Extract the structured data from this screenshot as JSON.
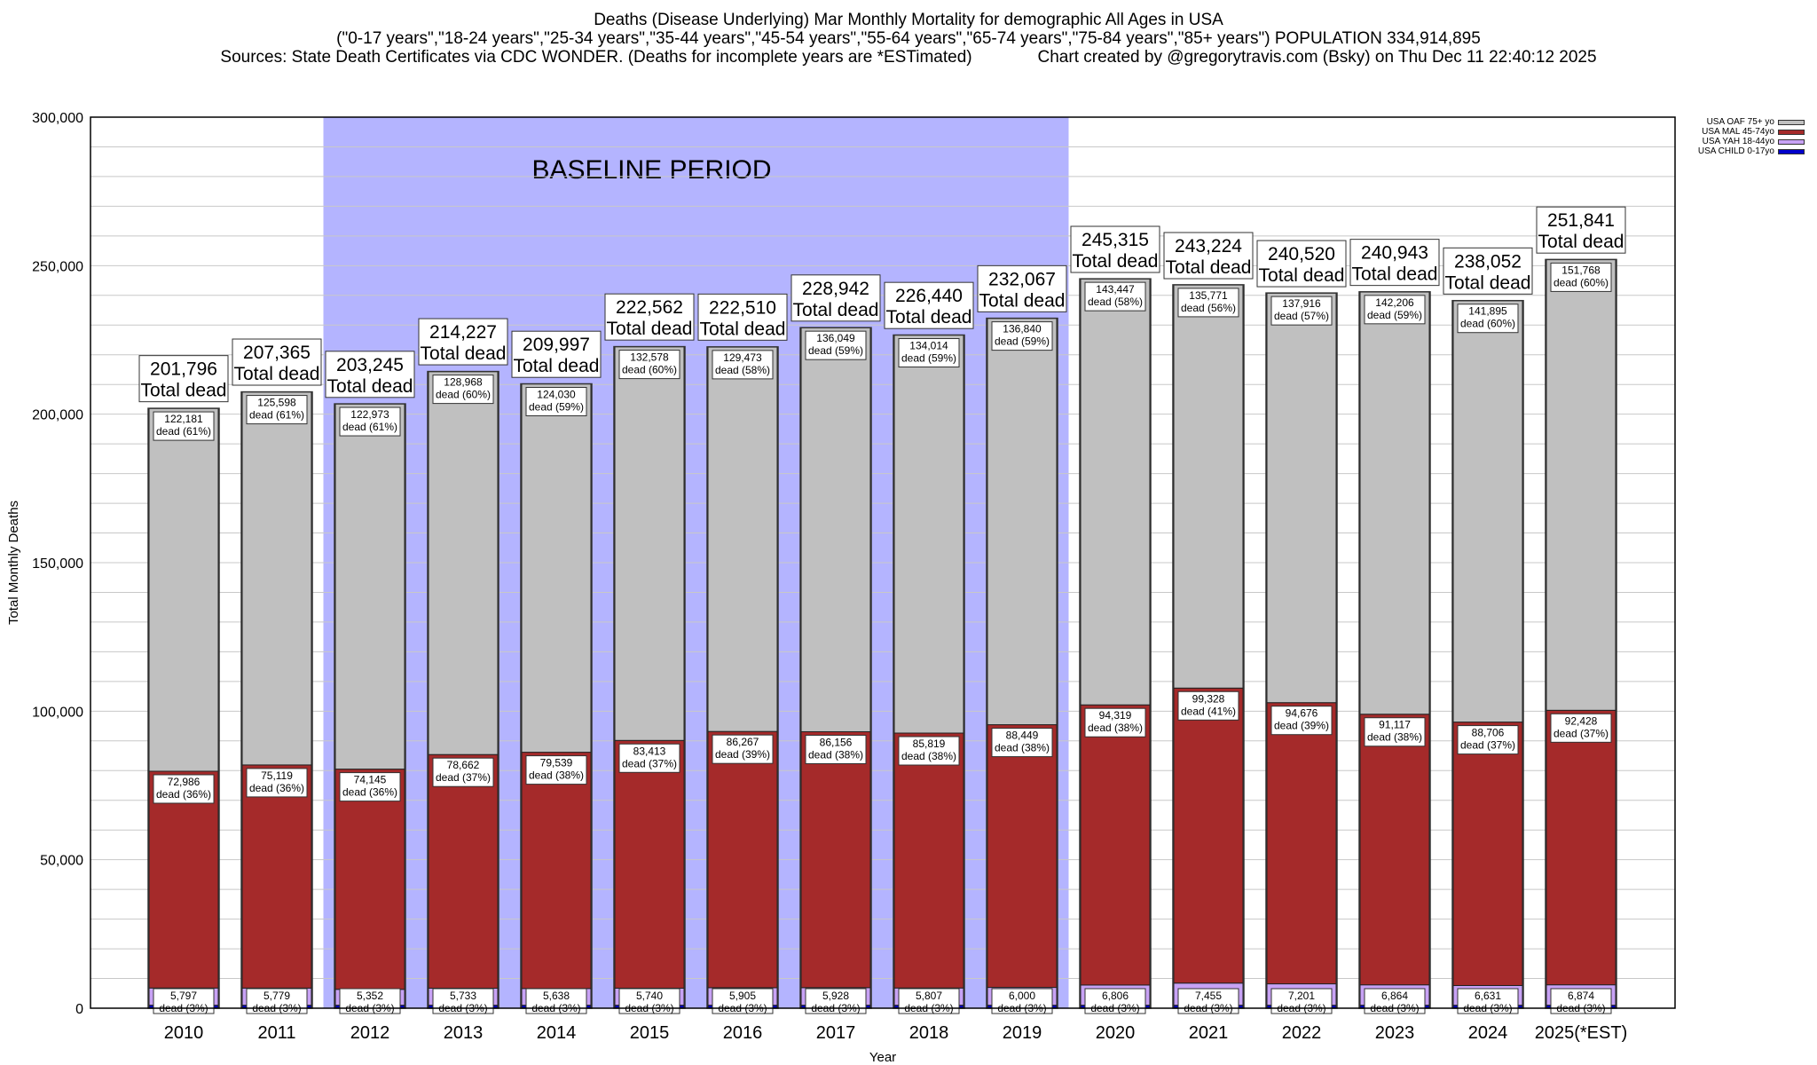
{
  "header": {
    "title": "Deaths (Disease Underlying) Mar Monthly Mortality for demographic All Ages in USA",
    "subtitle": "(\"0-17 years\",\"18-24 years\",\"25-34 years\",\"35-44 years\",\"45-54 years\",\"55-64 years\",\"65-74 years\",\"75-84 years\",\"85+ years\") POPULATION 334,914,895",
    "source_line": "Sources: State Death Certificates via CDC WONDER. (Deaths for incomplete years are *ESTimated)              Chart created by @gregorytravis.com (Bsky) on Thu Dec 11 22:40:12 2025"
  },
  "legend": [
    {
      "label": "USA OAF 75+ yo",
      "color": "#c0c0c0"
    },
    {
      "label": "USA MAL 45-74yo",
      "color": "#a52a2a"
    },
    {
      "label": "USA YAH 18-44yo",
      "color": "#c8a2f5"
    },
    {
      "label": "USA CHILD 0-17yo",
      "color": "#0000cc"
    }
  ],
  "chart_data": {
    "type": "bar",
    "stacked": true,
    "xlabel": "Year",
    "ylabel": "Total Monthly Deaths",
    "ylim": [
      0,
      300000
    ],
    "yticks": [
      0,
      50000,
      100000,
      150000,
      200000,
      250000,
      300000
    ],
    "ytick_labels": [
      "0",
      "50,000",
      "100,000",
      "150,000",
      "200,000",
      "250,000",
      "300,000"
    ],
    "grid": true,
    "legend_position": "top-right",
    "baseline": {
      "label": "BASELINE PERIOD",
      "from": "2012",
      "to": "2019",
      "color": "#b4b4ff"
    },
    "total_label_suffix": "Total dead",
    "categories": [
      "2010",
      "2011",
      "2012",
      "2013",
      "2014",
      "2015",
      "2016",
      "2017",
      "2018",
      "2019",
      "2020",
      "2021",
      "2022",
      "2023",
      "2024",
      "2025(*EST)"
    ],
    "totals": [
      201796,
      207365,
      203245,
      214227,
      209997,
      222562,
      222510,
      228942,
      226440,
      232067,
      245315,
      243224,
      240520,
      240943,
      238052,
      251841
    ],
    "total_labels": [
      "201,796",
      "207,365",
      "203,245",
      "214,227",
      "209,997",
      "222,562",
      "222,510",
      "228,942",
      "226,440",
      "232,067",
      "245,315",
      "243,224",
      "240,520",
      "240,943",
      "238,052",
      "251,841"
    ],
    "series": [
      {
        "name": "USA CHILD 0-17yo",
        "color": "#0000cc",
        "values": [
          1000,
          1000,
          1000,
          1000,
          1000,
          1000,
          1000,
          1000,
          1000,
          1000,
          1000,
          1000,
          1000,
          1000,
          1000,
          1000
        ]
      },
      {
        "name": "USA YAH 18-44yo",
        "color": "#c8a2f5",
        "values": [
          5797,
          5779,
          5352,
          5733,
          5638,
          5740,
          5905,
          5928,
          5807,
          6000,
          6806,
          7455,
          7201,
          6864,
          6631,
          6874
        ],
        "labels": [
          "5,797",
          "5,779",
          "5,352",
          "5,733",
          "5,638",
          "5,740",
          "5,905",
          "5,928",
          "5,807",
          "6,000",
          "6,806",
          "7,455",
          "7,201",
          "6,864",
          "6,631",
          "6,874"
        ],
        "label_suffix": [
          "dead (3%)",
          "dead (3%)",
          "dead (3%)",
          "dead (3%)",
          "dead (3%)",
          "dead (3%)",
          "dead (3%)",
          "dead (3%)",
          "dead (3%)",
          "dead (3%)",
          "dead (3%)",
          "dead (3%)",
          "dead (3%)",
          "dead (3%)",
          "dead (3%)",
          "dead (3%)"
        ]
      },
      {
        "name": "USA MAL 45-74yo",
        "color": "#a52a2a",
        "values": [
          72986,
          75119,
          74145,
          78662,
          79539,
          83413,
          86267,
          86156,
          85819,
          88449,
          94319,
          99328,
          94676,
          91117,
          88706,
          92428
        ],
        "labels": [
          "72,986",
          "75,119",
          "74,145",
          "78,662",
          "79,539",
          "83,413",
          "86,267",
          "86,156",
          "85,819",
          "88,449",
          "94,319",
          "99,328",
          "94,676",
          "91,117",
          "88,706",
          "92,428"
        ],
        "label_suffix": [
          "dead (36%)",
          "dead (36%)",
          "dead (36%)",
          "dead (37%)",
          "dead (38%)",
          "dead (37%)",
          "dead (39%)",
          "dead (38%)",
          "dead (38%)",
          "dead (38%)",
          "dead (38%)",
          "dead (41%)",
          "dead (39%)",
          "dead (38%)",
          "dead (37%)",
          "dead (37%)"
        ]
      },
      {
        "name": "USA OAF 75+ yo",
        "color": "#c0c0c0",
        "values": [
          122181,
          125598,
          122973,
          128968,
          124030,
          132578,
          129473,
          136049,
          134014,
          136840,
          143447,
          135771,
          137916,
          142206,
          141895,
          151768
        ],
        "labels": [
          "122,181",
          "125,598",
          "122,973",
          "128,968",
          "124,030",
          "132,578",
          "129,473",
          "136,049",
          "134,014",
          "136,840",
          "143,447",
          "135,771",
          "137,916",
          "142,206",
          "141,895",
          "151,768"
        ],
        "label_suffix": [
          "dead (61%)",
          "dead (61%)",
          "dead (61%)",
          "dead (60%)",
          "dead (59%)",
          "dead (60%)",
          "dead (58%)",
          "dead (59%)",
          "dead (59%)",
          "dead (59%)",
          "dead (58%)",
          "dead (56%)",
          "dead (57%)",
          "dead (59%)",
          "dead (60%)",
          "dead (60%)"
        ]
      }
    ]
  }
}
